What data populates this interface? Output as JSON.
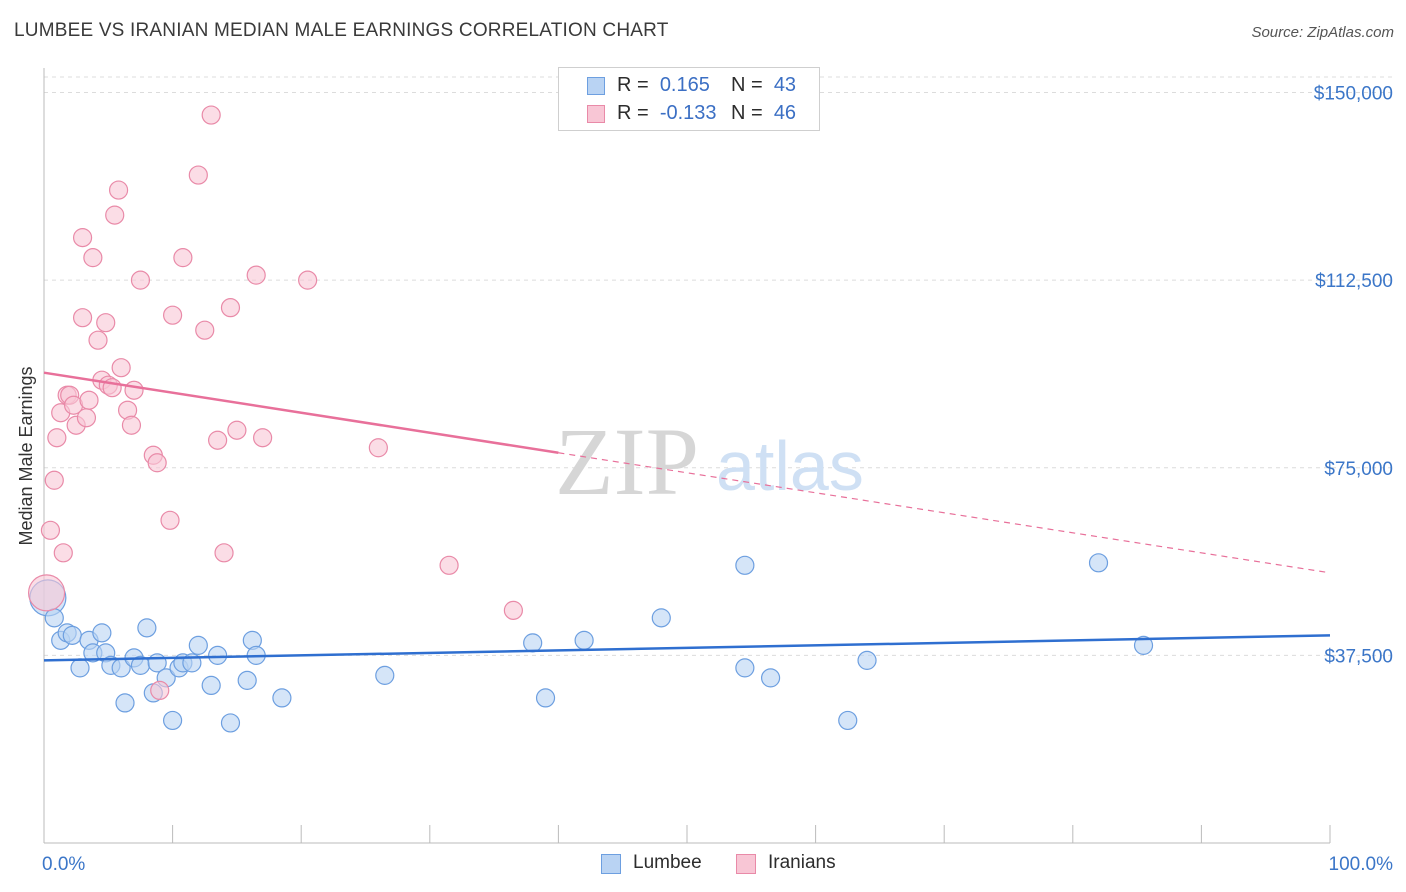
{
  "header": {
    "title": "LUMBEE VS IRANIAN MEDIAN MALE EARNINGS CORRELATION CHART",
    "source": "Source: ZipAtlas.com"
  },
  "legend_top": {
    "rows": [
      {
        "r_label": "R =",
        "r_value": "0.165",
        "n_label": "N =",
        "n_value": "43"
      },
      {
        "r_label": "R =",
        "r_value": "-0.133",
        "n_label": "N =",
        "n_value": "46"
      }
    ]
  },
  "legend_bottom": {
    "items": [
      "Lumbee",
      "Iranians"
    ]
  },
  "watermark": {
    "zip": "ZIP",
    "atlas": "atlas"
  },
  "colors": {
    "lumbee_fill": "#b9d3f3",
    "lumbee_stroke": "#6d9fe0",
    "lumbee_line": "#2f6fd0",
    "iranian_fill": "#f8c6d5",
    "iranian_stroke": "#e98aa8",
    "iranian_line": "#e8709a",
    "axis_text": "#3b76c8",
    "grid": "#dcdcdc"
  },
  "chart_data": {
    "type": "scatter",
    "title": "LUMBEE VS IRANIAN MEDIAN MALE EARNINGS CORRELATION CHART",
    "xlabel": "",
    "ylabel": "Median Male Earnings",
    "xlim": [
      0,
      100
    ],
    "ylim": [
      0,
      157500
    ],
    "x_tick_labels": [
      "0.0%",
      "100.0%"
    ],
    "y_ticks": [
      37500,
      75000,
      112500,
      150000
    ],
    "y_tick_labels": [
      "$37,500",
      "$75,000",
      "$112,500",
      "$150,000"
    ],
    "series": [
      {
        "name": "Lumbee",
        "r": 0.165,
        "n": 43,
        "trend": {
          "x": [
            0,
            100
          ],
          "y": [
            36500,
            41500
          ],
          "solid_until": 100
        },
        "points": [
          {
            "x": 0.3,
            "y": 49000,
            "s": 2
          },
          {
            "x": 0.8,
            "y": 45000
          },
          {
            "x": 1.3,
            "y": 40500
          },
          {
            "x": 1.8,
            "y": 42000
          },
          {
            "x": 2.2,
            "y": 41500
          },
          {
            "x": 2.8,
            "y": 35000
          },
          {
            "x": 3.5,
            "y": 40500
          },
          {
            "x": 3.8,
            "y": 38000
          },
          {
            "x": 4.5,
            "y": 42000
          },
          {
            "x": 4.8,
            "y": 38000
          },
          {
            "x": 5.2,
            "y": 35500
          },
          {
            "x": 6.0,
            "y": 35000
          },
          {
            "x": 6.3,
            "y": 28000
          },
          {
            "x": 7.0,
            "y": 37000
          },
          {
            "x": 7.5,
            "y": 35500
          },
          {
            "x": 8.0,
            "y": 43000
          },
          {
            "x": 8.5,
            "y": 30000
          },
          {
            "x": 8.8,
            "y": 36000
          },
          {
            "x": 9.5,
            "y": 33000
          },
          {
            "x": 10.0,
            "y": 24500
          },
          {
            "x": 10.5,
            "y": 35000
          },
          {
            "x": 10.8,
            "y": 36000
          },
          {
            "x": 11.5,
            "y": 36000
          },
          {
            "x": 12.0,
            "y": 39500
          },
          {
            "x": 13.0,
            "y": 31500
          },
          {
            "x": 13.5,
            "y": 37500
          },
          {
            "x": 14.5,
            "y": 24000
          },
          {
            "x": 15.8,
            "y": 32500
          },
          {
            "x": 16.2,
            "y": 40500
          },
          {
            "x": 16.5,
            "y": 37500
          },
          {
            "x": 18.5,
            "y": 29000
          },
          {
            "x": 26.5,
            "y": 33500
          },
          {
            "x": 38.0,
            "y": 40000
          },
          {
            "x": 39.0,
            "y": 29000
          },
          {
            "x": 42.0,
            "y": 40500
          },
          {
            "x": 48.0,
            "y": 45000
          },
          {
            "x": 54.5,
            "y": 55500
          },
          {
            "x": 54.5,
            "y": 35000
          },
          {
            "x": 56.5,
            "y": 33000
          },
          {
            "x": 62.5,
            "y": 24500
          },
          {
            "x": 64.0,
            "y": 36500
          },
          {
            "x": 82.0,
            "y": 56000
          },
          {
            "x": 85.5,
            "y": 39500
          }
        ]
      },
      {
        "name": "Iranians",
        "r": -0.133,
        "n": 46,
        "trend": {
          "x": [
            0,
            100
          ],
          "y": [
            94000,
            54000
          ],
          "solid_until": 40
        },
        "points": [
          {
            "x": 0.2,
            "y": 50000,
            "s": 2
          },
          {
            "x": 0.5,
            "y": 62500
          },
          {
            "x": 0.8,
            "y": 72500
          },
          {
            "x": 1.0,
            "y": 81000
          },
          {
            "x": 1.3,
            "y": 86000
          },
          {
            "x": 1.5,
            "y": 58000
          },
          {
            "x": 1.8,
            "y": 89500
          },
          {
            "x": 2.0,
            "y": 89500
          },
          {
            "x": 2.3,
            "y": 87500
          },
          {
            "x": 2.5,
            "y": 83500
          },
          {
            "x": 3.0,
            "y": 105000
          },
          {
            "x": 3.0,
            "y": 121000
          },
          {
            "x": 3.3,
            "y": 85000
          },
          {
            "x": 3.5,
            "y": 88500
          },
          {
            "x": 3.8,
            "y": 117000
          },
          {
            "x": 4.2,
            "y": 100500
          },
          {
            "x": 4.5,
            "y": 92500
          },
          {
            "x": 4.8,
            "y": 104000
          },
          {
            "x": 5.0,
            "y": 91500
          },
          {
            "x": 5.3,
            "y": 91000
          },
          {
            "x": 5.5,
            "y": 125500
          },
          {
            "x": 5.8,
            "y": 130500
          },
          {
            "x": 6.0,
            "y": 95000
          },
          {
            "x": 6.5,
            "y": 86500
          },
          {
            "x": 6.8,
            "y": 83500
          },
          {
            "x": 7.0,
            "y": 90500
          },
          {
            "x": 7.5,
            "y": 112500
          },
          {
            "x": 8.5,
            "y": 77500
          },
          {
            "x": 8.8,
            "y": 76000
          },
          {
            "x": 9.0,
            "y": 30500
          },
          {
            "x": 9.8,
            "y": 64500
          },
          {
            "x": 10.0,
            "y": 105500
          },
          {
            "x": 10.8,
            "y": 117000
          },
          {
            "x": 12.0,
            "y": 133500
          },
          {
            "x": 12.5,
            "y": 102500
          },
          {
            "x": 13.0,
            "y": 145500
          },
          {
            "x": 13.5,
            "y": 80500
          },
          {
            "x": 14.0,
            "y": 58000
          },
          {
            "x": 14.5,
            "y": 107000
          },
          {
            "x": 15.0,
            "y": 82500
          },
          {
            "x": 16.5,
            "y": 113500
          },
          {
            "x": 17.0,
            "y": 81000
          },
          {
            "x": 20.5,
            "y": 112500
          },
          {
            "x": 26.0,
            "y": 79000
          },
          {
            "x": 31.5,
            "y": 55500
          },
          {
            "x": 36.5,
            "y": 46500
          }
        ]
      }
    ]
  }
}
